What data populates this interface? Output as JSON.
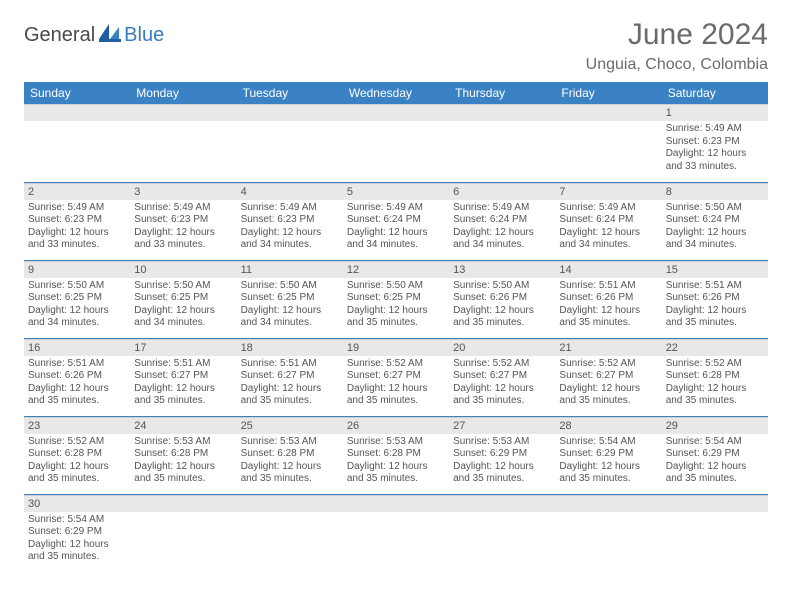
{
  "brand": {
    "part1": "General",
    "part2": "Blue"
  },
  "title": "June 2024",
  "location": "Unguia, Choco, Colombia",
  "colors": {
    "header_bg": "#3a82c4",
    "header_text": "#ffffff",
    "daynum_bg": "#e8e8e8",
    "row_divider": "#3a82c4",
    "title_color": "#6b6b6b",
    "body_text": "#555555"
  },
  "weekdays": [
    "Sunday",
    "Monday",
    "Tuesday",
    "Wednesday",
    "Thursday",
    "Friday",
    "Saturday"
  ],
  "days": [
    {
      "n": 1,
      "sr": "5:49 AM",
      "ss": "6:23 PM",
      "dl": "12 hours and 33 minutes."
    },
    {
      "n": 2,
      "sr": "5:49 AM",
      "ss": "6:23 PM",
      "dl": "12 hours and 33 minutes."
    },
    {
      "n": 3,
      "sr": "5:49 AM",
      "ss": "6:23 PM",
      "dl": "12 hours and 33 minutes."
    },
    {
      "n": 4,
      "sr": "5:49 AM",
      "ss": "6:23 PM",
      "dl": "12 hours and 34 minutes."
    },
    {
      "n": 5,
      "sr": "5:49 AM",
      "ss": "6:24 PM",
      "dl": "12 hours and 34 minutes."
    },
    {
      "n": 6,
      "sr": "5:49 AM",
      "ss": "6:24 PM",
      "dl": "12 hours and 34 minutes."
    },
    {
      "n": 7,
      "sr": "5:49 AM",
      "ss": "6:24 PM",
      "dl": "12 hours and 34 minutes."
    },
    {
      "n": 8,
      "sr": "5:50 AM",
      "ss": "6:24 PM",
      "dl": "12 hours and 34 minutes."
    },
    {
      "n": 9,
      "sr": "5:50 AM",
      "ss": "6:25 PM",
      "dl": "12 hours and 34 minutes."
    },
    {
      "n": 10,
      "sr": "5:50 AM",
      "ss": "6:25 PM",
      "dl": "12 hours and 34 minutes."
    },
    {
      "n": 11,
      "sr": "5:50 AM",
      "ss": "6:25 PM",
      "dl": "12 hours and 34 minutes."
    },
    {
      "n": 12,
      "sr": "5:50 AM",
      "ss": "6:25 PM",
      "dl": "12 hours and 35 minutes."
    },
    {
      "n": 13,
      "sr": "5:50 AM",
      "ss": "6:26 PM",
      "dl": "12 hours and 35 minutes."
    },
    {
      "n": 14,
      "sr": "5:51 AM",
      "ss": "6:26 PM",
      "dl": "12 hours and 35 minutes."
    },
    {
      "n": 15,
      "sr": "5:51 AM",
      "ss": "6:26 PM",
      "dl": "12 hours and 35 minutes."
    },
    {
      "n": 16,
      "sr": "5:51 AM",
      "ss": "6:26 PM",
      "dl": "12 hours and 35 minutes."
    },
    {
      "n": 17,
      "sr": "5:51 AM",
      "ss": "6:27 PM",
      "dl": "12 hours and 35 minutes."
    },
    {
      "n": 18,
      "sr": "5:51 AM",
      "ss": "6:27 PM",
      "dl": "12 hours and 35 minutes."
    },
    {
      "n": 19,
      "sr": "5:52 AM",
      "ss": "6:27 PM",
      "dl": "12 hours and 35 minutes."
    },
    {
      "n": 20,
      "sr": "5:52 AM",
      "ss": "6:27 PM",
      "dl": "12 hours and 35 minutes."
    },
    {
      "n": 21,
      "sr": "5:52 AM",
      "ss": "6:27 PM",
      "dl": "12 hours and 35 minutes."
    },
    {
      "n": 22,
      "sr": "5:52 AM",
      "ss": "6:28 PM",
      "dl": "12 hours and 35 minutes."
    },
    {
      "n": 23,
      "sr": "5:52 AM",
      "ss": "6:28 PM",
      "dl": "12 hours and 35 minutes."
    },
    {
      "n": 24,
      "sr": "5:53 AM",
      "ss": "6:28 PM",
      "dl": "12 hours and 35 minutes."
    },
    {
      "n": 25,
      "sr": "5:53 AM",
      "ss": "6:28 PM",
      "dl": "12 hours and 35 minutes."
    },
    {
      "n": 26,
      "sr": "5:53 AM",
      "ss": "6:28 PM",
      "dl": "12 hours and 35 minutes."
    },
    {
      "n": 27,
      "sr": "5:53 AM",
      "ss": "6:29 PM",
      "dl": "12 hours and 35 minutes."
    },
    {
      "n": 28,
      "sr": "5:54 AM",
      "ss": "6:29 PM",
      "dl": "12 hours and 35 minutes."
    },
    {
      "n": 29,
      "sr": "5:54 AM",
      "ss": "6:29 PM",
      "dl": "12 hours and 35 minutes."
    },
    {
      "n": 30,
      "sr": "5:54 AM",
      "ss": "6:29 PM",
      "dl": "12 hours and 35 minutes."
    }
  ],
  "labels": {
    "sunrise": "Sunrise:",
    "sunset": "Sunset:",
    "daylight": "Daylight:"
  },
  "layout": {
    "first_weekday_index": 6,
    "rows": 6,
    "cols": 7
  }
}
